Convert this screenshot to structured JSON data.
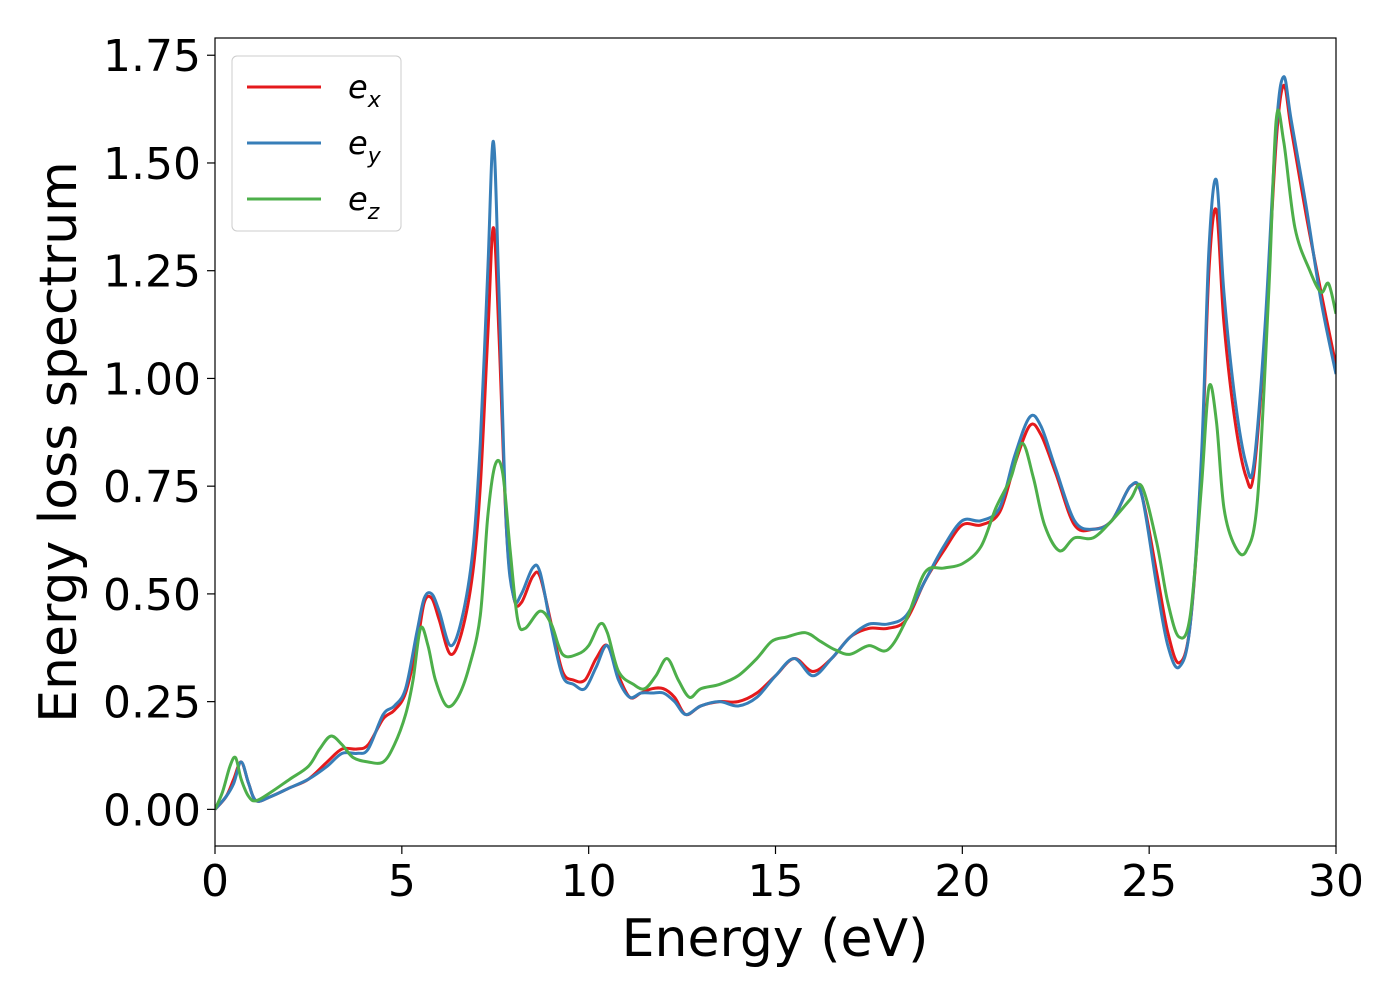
{
  "chart_data": {
    "type": "line",
    "xlabel": "Energy (eV)",
    "ylabel": "Energy loss spectrum",
    "xlim": [
      0,
      30
    ],
    "ylim": [
      -0.085,
      1.79
    ],
    "xticks": [
      0,
      5,
      10,
      15,
      20,
      25,
      30
    ],
    "xtick_labels": [
      "0",
      "5",
      "10",
      "15",
      "20",
      "25",
      "30"
    ],
    "yticks": [
      0.0,
      0.25,
      0.5,
      0.75,
      1.0,
      1.25,
      1.5,
      1.75
    ],
    "ytick_labels": [
      "0.00",
      "0.25",
      "0.50",
      "0.75",
      "1.00",
      "1.25",
      "1.50",
      "1.75"
    ],
    "grid": false,
    "legend_position": "top-left",
    "series": [
      {
        "name": "e",
        "subscript": "x",
        "color": "#e41a1c",
        "points": [
          [
            0,
            0
          ],
          [
            0.3,
            0.03
          ],
          [
            0.5,
            0.07
          ],
          [
            0.7,
            0.11
          ],
          [
            0.9,
            0.06
          ],
          [
            1.1,
            0.02
          ],
          [
            1.5,
            0.03
          ],
          [
            2,
            0.05
          ],
          [
            2.5,
            0.07
          ],
          [
            3,
            0.11
          ],
          [
            3.4,
            0.14
          ],
          [
            3.8,
            0.14
          ],
          [
            4.1,
            0.15
          ],
          [
            4.5,
            0.21
          ],
          [
            4.8,
            0.23
          ],
          [
            5.1,
            0.27
          ],
          [
            5.4,
            0.38
          ],
          [
            5.6,
            0.48
          ],
          [
            5.8,
            0.49
          ],
          [
            6.0,
            0.44
          ],
          [
            6.3,
            0.36
          ],
          [
            6.6,
            0.41
          ],
          [
            6.9,
            0.55
          ],
          [
            7.1,
            0.75
          ],
          [
            7.3,
            1.1
          ],
          [
            7.45,
            1.35
          ],
          [
            7.6,
            1.1
          ],
          [
            7.8,
            0.65
          ],
          [
            8.0,
            0.49
          ],
          [
            8.2,
            0.48
          ],
          [
            8.5,
            0.54
          ],
          [
            8.7,
            0.54
          ],
          [
            9.0,
            0.43
          ],
          [
            9.3,
            0.32
          ],
          [
            9.6,
            0.3
          ],
          [
            9.9,
            0.3
          ],
          [
            10.2,
            0.35
          ],
          [
            10.5,
            0.38
          ],
          [
            10.8,
            0.31
          ],
          [
            11.1,
            0.26
          ],
          [
            11.4,
            0.27
          ],
          [
            11.7,
            0.28
          ],
          [
            12.0,
            0.28
          ],
          [
            12.3,
            0.26
          ],
          [
            12.6,
            0.22
          ],
          [
            13.0,
            0.24
          ],
          [
            13.5,
            0.25
          ],
          [
            14.0,
            0.25
          ],
          [
            14.5,
            0.27
          ],
          [
            15.0,
            0.31
          ],
          [
            15.5,
            0.35
          ],
          [
            16.0,
            0.32
          ],
          [
            16.5,
            0.35
          ],
          [
            17.0,
            0.4
          ],
          [
            17.5,
            0.42
          ],
          [
            18.0,
            0.42
          ],
          [
            18.5,
            0.44
          ],
          [
            19.0,
            0.53
          ],
          [
            19.5,
            0.6
          ],
          [
            20.0,
            0.66
          ],
          [
            20.5,
            0.66
          ],
          [
            21.0,
            0.69
          ],
          [
            21.4,
            0.8
          ],
          [
            21.8,
            0.89
          ],
          [
            22.1,
            0.87
          ],
          [
            22.5,
            0.78
          ],
          [
            23.0,
            0.66
          ],
          [
            23.5,
            0.65
          ],
          [
            24.0,
            0.67
          ],
          [
            24.5,
            0.75
          ],
          [
            24.8,
            0.73
          ],
          [
            25.2,
            0.55
          ],
          [
            25.5,
            0.41
          ],
          [
            25.8,
            0.34
          ],
          [
            26.1,
            0.43
          ],
          [
            26.4,
            0.8
          ],
          [
            26.6,
            1.25
          ],
          [
            26.8,
            1.39
          ],
          [
            27.0,
            1.13
          ],
          [
            27.3,
            0.9
          ],
          [
            27.6,
            0.77
          ],
          [
            27.8,
            0.78
          ],
          [
            28.1,
            1.1
          ],
          [
            28.4,
            1.55
          ],
          [
            28.6,
            1.68
          ],
          [
            28.8,
            1.58
          ],
          [
            29.2,
            1.38
          ],
          [
            29.6,
            1.2
          ],
          [
            30.0,
            1.03
          ]
        ]
      },
      {
        "name": "e",
        "subscript": "y",
        "color": "#377eb8",
        "points": [
          [
            0,
            0
          ],
          [
            0.3,
            0.03
          ],
          [
            0.5,
            0.06
          ],
          [
            0.7,
            0.11
          ],
          [
            0.9,
            0.06
          ],
          [
            1.1,
            0.02
          ],
          [
            1.5,
            0.03
          ],
          [
            2,
            0.05
          ],
          [
            2.5,
            0.07
          ],
          [
            3,
            0.1
          ],
          [
            3.4,
            0.13
          ],
          [
            3.8,
            0.13
          ],
          [
            4.1,
            0.14
          ],
          [
            4.5,
            0.22
          ],
          [
            4.8,
            0.24
          ],
          [
            5.1,
            0.28
          ],
          [
            5.4,
            0.41
          ],
          [
            5.6,
            0.49
          ],
          [
            5.8,
            0.5
          ],
          [
            6.0,
            0.46
          ],
          [
            6.3,
            0.38
          ],
          [
            6.6,
            0.44
          ],
          [
            6.9,
            0.6
          ],
          [
            7.1,
            0.85
          ],
          [
            7.3,
            1.25
          ],
          [
            7.45,
            1.55
          ],
          [
            7.6,
            1.2
          ],
          [
            7.8,
            0.65
          ],
          [
            8.0,
            0.49
          ],
          [
            8.2,
            0.5
          ],
          [
            8.5,
            0.56
          ],
          [
            8.7,
            0.55
          ],
          [
            9.0,
            0.42
          ],
          [
            9.3,
            0.31
          ],
          [
            9.6,
            0.29
          ],
          [
            9.9,
            0.28
          ],
          [
            10.2,
            0.33
          ],
          [
            10.5,
            0.38
          ],
          [
            10.8,
            0.3
          ],
          [
            11.1,
            0.26
          ],
          [
            11.4,
            0.27
          ],
          [
            11.7,
            0.27
          ],
          [
            12.0,
            0.27
          ],
          [
            12.3,
            0.25
          ],
          [
            12.6,
            0.22
          ],
          [
            13.0,
            0.24
          ],
          [
            13.5,
            0.25
          ],
          [
            14.0,
            0.24
          ],
          [
            14.5,
            0.26
          ],
          [
            15.0,
            0.31
          ],
          [
            15.5,
            0.35
          ],
          [
            16.0,
            0.31
          ],
          [
            16.5,
            0.35
          ],
          [
            17.0,
            0.4
          ],
          [
            17.5,
            0.43
          ],
          [
            18.0,
            0.43
          ],
          [
            18.5,
            0.45
          ],
          [
            19.0,
            0.53
          ],
          [
            19.5,
            0.61
          ],
          [
            20.0,
            0.67
          ],
          [
            20.5,
            0.67
          ],
          [
            21.0,
            0.7
          ],
          [
            21.4,
            0.82
          ],
          [
            21.8,
            0.91
          ],
          [
            22.1,
            0.89
          ],
          [
            22.5,
            0.79
          ],
          [
            23.0,
            0.67
          ],
          [
            23.5,
            0.65
          ],
          [
            24.0,
            0.67
          ],
          [
            24.5,
            0.75
          ],
          [
            24.8,
            0.73
          ],
          [
            25.2,
            0.52
          ],
          [
            25.5,
            0.38
          ],
          [
            25.8,
            0.33
          ],
          [
            26.1,
            0.43
          ],
          [
            26.4,
            0.82
          ],
          [
            26.6,
            1.3
          ],
          [
            26.8,
            1.46
          ],
          [
            27.0,
            1.2
          ],
          [
            27.3,
            0.95
          ],
          [
            27.6,
            0.8
          ],
          [
            27.8,
            0.8
          ],
          [
            28.1,
            1.12
          ],
          [
            28.4,
            1.58
          ],
          [
            28.6,
            1.7
          ],
          [
            28.8,
            1.6
          ],
          [
            29.2,
            1.4
          ],
          [
            29.6,
            1.18
          ],
          [
            30.0,
            1.01
          ]
        ]
      },
      {
        "name": "e",
        "subscript": "z",
        "color": "#4daf4a",
        "points": [
          [
            0,
            0
          ],
          [
            0.2,
            0.04
          ],
          [
            0.4,
            0.1
          ],
          [
            0.55,
            0.12
          ],
          [
            0.7,
            0.07
          ],
          [
            0.9,
            0.03
          ],
          [
            1.1,
            0.02
          ],
          [
            1.5,
            0.04
          ],
          [
            2,
            0.07
          ],
          [
            2.5,
            0.1
          ],
          [
            2.8,
            0.14
          ],
          [
            3.1,
            0.17
          ],
          [
            3.4,
            0.15
          ],
          [
            3.7,
            0.12
          ],
          [
            4.1,
            0.11
          ],
          [
            4.5,
            0.11
          ],
          [
            4.8,
            0.15
          ],
          [
            5.1,
            0.22
          ],
          [
            5.3,
            0.3
          ],
          [
            5.5,
            0.42
          ],
          [
            5.7,
            0.38
          ],
          [
            5.9,
            0.3
          ],
          [
            6.2,
            0.24
          ],
          [
            6.5,
            0.26
          ],
          [
            6.8,
            0.33
          ],
          [
            7.1,
            0.45
          ],
          [
            7.3,
            0.68
          ],
          [
            7.5,
            0.8
          ],
          [
            7.7,
            0.78
          ],
          [
            7.9,
            0.6
          ],
          [
            8.1,
            0.44
          ],
          [
            8.3,
            0.42
          ],
          [
            8.7,
            0.46
          ],
          [
            9.0,
            0.43
          ],
          [
            9.3,
            0.36
          ],
          [
            9.7,
            0.36
          ],
          [
            10.0,
            0.38
          ],
          [
            10.3,
            0.43
          ],
          [
            10.5,
            0.41
          ],
          [
            10.8,
            0.32
          ],
          [
            11.2,
            0.29
          ],
          [
            11.5,
            0.28
          ],
          [
            11.8,
            0.31
          ],
          [
            12.1,
            0.35
          ],
          [
            12.4,
            0.3
          ],
          [
            12.7,
            0.26
          ],
          [
            13.0,
            0.28
          ],
          [
            13.5,
            0.29
          ],
          [
            14.0,
            0.31
          ],
          [
            14.5,
            0.35
          ],
          [
            14.9,
            0.39
          ],
          [
            15.3,
            0.4
          ],
          [
            15.8,
            0.41
          ],
          [
            16.2,
            0.39
          ],
          [
            16.6,
            0.37
          ],
          [
            17.0,
            0.36
          ],
          [
            17.5,
            0.38
          ],
          [
            18.0,
            0.37
          ],
          [
            18.5,
            0.44
          ],
          [
            19.0,
            0.55
          ],
          [
            19.5,
            0.56
          ],
          [
            20.0,
            0.57
          ],
          [
            20.5,
            0.61
          ],
          [
            20.9,
            0.7
          ],
          [
            21.3,
            0.77
          ],
          [
            21.6,
            0.85
          ],
          [
            21.9,
            0.77
          ],
          [
            22.2,
            0.66
          ],
          [
            22.6,
            0.6
          ],
          [
            23.0,
            0.63
          ],
          [
            23.5,
            0.63
          ],
          [
            24.0,
            0.67
          ],
          [
            24.5,
            0.72
          ],
          [
            24.8,
            0.75
          ],
          [
            25.2,
            0.62
          ],
          [
            25.5,
            0.48
          ],
          [
            25.8,
            0.4
          ],
          [
            26.1,
            0.45
          ],
          [
            26.4,
            0.75
          ],
          [
            26.6,
            0.98
          ],
          [
            26.8,
            0.9
          ],
          [
            27.0,
            0.7
          ],
          [
            27.3,
            0.61
          ],
          [
            27.6,
            0.6
          ],
          [
            27.9,
            0.72
          ],
          [
            28.2,
            1.2
          ],
          [
            28.4,
            1.6
          ],
          [
            28.6,
            1.55
          ],
          [
            28.9,
            1.35
          ],
          [
            29.3,
            1.25
          ],
          [
            29.6,
            1.2
          ],
          [
            29.8,
            1.22
          ],
          [
            30.0,
            1.15
          ]
        ]
      }
    ]
  }
}
